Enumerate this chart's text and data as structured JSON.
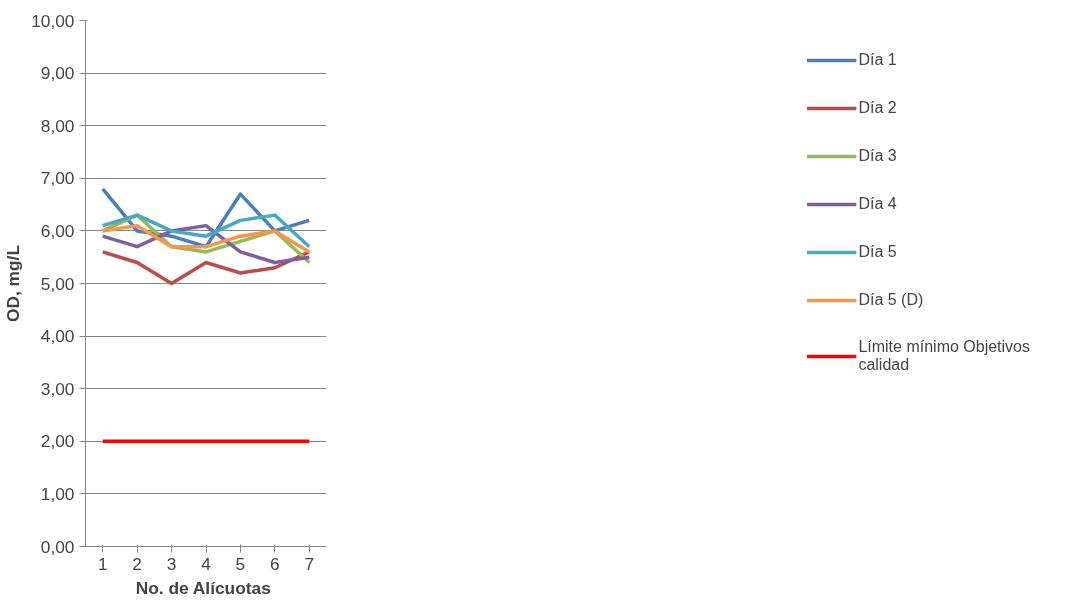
{
  "chart_data": {
    "type": "line",
    "xlabel": "No.  de Alícuotas",
    "ylabel": "OD, mg/L",
    "categories": [
      "1",
      "2",
      "3",
      "4",
      "5",
      "6",
      "7"
    ],
    "series": [
      {
        "name": "Día 1",
        "color": "#4a7ebb",
        "values": [
          6.8,
          6.0,
          5.9,
          5.7,
          6.7,
          6.0,
          6.2
        ]
      },
      {
        "name": "Día 2",
        "color": "#be4b48",
        "values": [
          5.6,
          5.4,
          5.0,
          5.4,
          5.2,
          5.3,
          5.6
        ]
      },
      {
        "name": "Día 3",
        "color": "#98b954",
        "values": [
          6.0,
          6.3,
          5.7,
          5.6,
          5.8,
          6.0,
          5.4
        ]
      },
      {
        "name": "Día 4",
        "color": "#7d60a0",
        "values": [
          5.9,
          5.7,
          6.0,
          6.1,
          5.6,
          5.4,
          5.5
        ]
      },
      {
        "name": "Día 5",
        "color": "#46aac5",
        "values": [
          6.1,
          6.3,
          6.0,
          5.9,
          6.2,
          6.3,
          5.7
        ]
      },
      {
        "name": "Día 5 (D)",
        "color": "#f79646",
        "values": [
          6.0,
          6.1,
          5.7,
          5.7,
          5.9,
          6.0,
          5.6
        ]
      },
      {
        "name": "Límite mínimo Objetivos calidad",
        "color": "#ff0000",
        "values": [
          2.0,
          2.0,
          2.0,
          2.0,
          2.0,
          2.0,
          2.0
        ]
      }
    ],
    "ylim": [
      0,
      10
    ],
    "yticks": [
      {
        "value": 0,
        "label": "0,00"
      },
      {
        "value": 1,
        "label": "1,00"
      },
      {
        "value": 2,
        "label": "2,00"
      },
      {
        "value": 3,
        "label": "3,00"
      },
      {
        "value": 4,
        "label": "4,00"
      },
      {
        "value": 5,
        "label": "5,00"
      },
      {
        "value": 6,
        "label": "6,00"
      },
      {
        "value": 7,
        "label": "7,00"
      },
      {
        "value": 8,
        "label": "8,00"
      },
      {
        "value": 9,
        "label": "9,00"
      },
      {
        "value": 10,
        "label": "10,00"
      }
    ],
    "grid": "y",
    "legend": "right",
    "marker": "none",
    "line_style": "solid"
  }
}
